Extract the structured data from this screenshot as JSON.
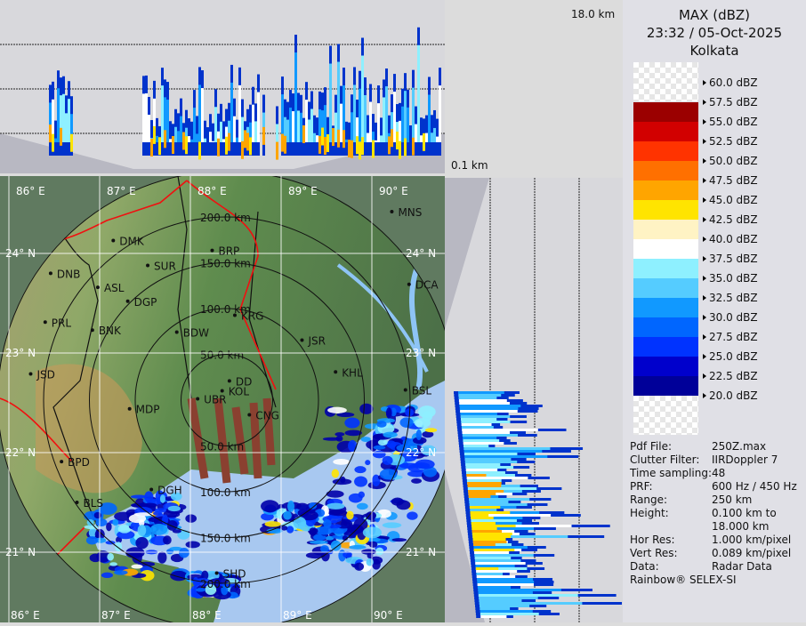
{
  "legend": {
    "title": "MAX (dBZ)",
    "datetime": "23:32 / 05-Oct-2025",
    "station": "Kolkata",
    "ticks": [
      "60.0 dBZ",
      "57.5 dBZ",
      "55.0 dBZ",
      "52.5 dBZ",
      "50.0 dBZ",
      "47.5 dBZ",
      "45.0 dBZ",
      "42.5 dBZ",
      "40.0 dBZ",
      "37.5 dBZ",
      "35.0 dBZ",
      "32.5 dBZ",
      "30.0 dBZ",
      "27.5 dBZ",
      "25.0 dBZ",
      "22.5 dBZ",
      "20.0 dBZ"
    ],
    "band_colors": [
      "checker",
      "#9b0000",
      "#d20000",
      "#ff3300",
      "#ff7000",
      "#ffa500",
      "#ffe400",
      "#fff3c4",
      "#ffffff",
      "#8ef0ff",
      "#55ccff",
      "#1199ff",
      "#0066ff",
      "#0033ff",
      "#0000cc",
      "#000099"
    ]
  },
  "info": [
    {
      "key": "Pdf File:",
      "value": "250Z.max"
    },
    {
      "key": "Clutter Filter:",
      "value": "IIRDoppler 7"
    },
    {
      "key": "Time sampling:",
      "value": "48"
    },
    {
      "key": "PRF:",
      "value": "600 Hz / 450 Hz"
    },
    {
      "key": "Range:",
      "value": "250 km"
    },
    {
      "key": "Height:",
      "value": "0.100 km to"
    },
    {
      "key": "",
      "value": "18.000 km"
    },
    {
      "key": "Hor Res:",
      "value": "1.000 km/pixel"
    },
    {
      "key": "Vert Res:",
      "value": "0.089 km/pixel"
    },
    {
      "key": "Data:",
      "value": "Radar Data"
    }
  ],
  "footer": "Rainbow® SELEX-SI",
  "profile": {
    "top_label": "18.0 km",
    "bottom_label": "0.1 km"
  },
  "map": {
    "lon_labels": [
      "86° E",
      "87° E",
      "88° E",
      "89° E",
      "90° E"
    ],
    "lat_labels": [
      "24° N",
      "23° N",
      "22° N",
      "21° N"
    ],
    "ring_labels": [
      "50.0 km",
      "100.0 km",
      "150.0 km",
      "200.0 km"
    ],
    "cities": [
      {
        "name": "MNS",
        "lon": 90.22,
        "lat": 24.42
      },
      {
        "name": "DMK",
        "lon": 87.15,
        "lat": 24.13
      },
      {
        "name": "BRP",
        "lon": 88.24,
        "lat": 24.03
      },
      {
        "name": "SUR",
        "lon": 87.53,
        "lat": 23.88
      },
      {
        "name": "DNB",
        "lon": 86.46,
        "lat": 23.8
      },
      {
        "name": "ASL",
        "lon": 86.98,
        "lat": 23.66
      },
      {
        "name": "DGP",
        "lon": 87.31,
        "lat": 23.52
      },
      {
        "name": "DCA",
        "lon": 90.41,
        "lat": 23.69
      },
      {
        "name": "KRG",
        "lon": 88.49,
        "lat": 23.38
      },
      {
        "name": "PRL",
        "lon": 86.4,
        "lat": 23.31
      },
      {
        "name": "BNK",
        "lon": 86.92,
        "lat": 23.23
      },
      {
        "name": "BDW",
        "lon": 87.85,
        "lat": 23.21
      },
      {
        "name": "JSR",
        "lon": 89.23,
        "lat": 23.13
      },
      {
        "name": "KHL",
        "lon": 89.6,
        "lat": 22.81
      },
      {
        "name": "JSD",
        "lon": 86.24,
        "lat": 22.79
      },
      {
        "name": "BSL",
        "lon": 90.37,
        "lat": 22.63
      },
      {
        "name": "DD",
        "lon": 88.43,
        "lat": 22.72
      },
      {
        "name": "KOL",
        "lon": 88.35,
        "lat": 22.62
      },
      {
        "name": "UBR",
        "lon": 88.08,
        "lat": 22.54
      },
      {
        "name": "MDP",
        "lon": 87.33,
        "lat": 22.44
      },
      {
        "name": "CNG",
        "lon": 88.65,
        "lat": 22.38
      },
      {
        "name": "BPD",
        "lon": 86.58,
        "lat": 21.91
      },
      {
        "name": "DGH",
        "lon": 87.57,
        "lat": 21.63
      },
      {
        "name": "BLS",
        "lon": 86.75,
        "lat": 21.5
      },
      {
        "name": "SHD",
        "lon": 88.29,
        "lat": 20.79
      }
    ]
  }
}
